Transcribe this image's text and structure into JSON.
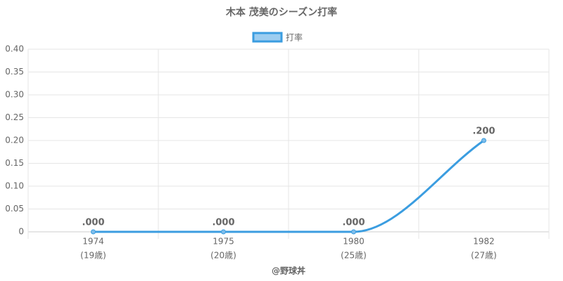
{
  "chart_data": {
    "type": "line",
    "title": "木本 茂美のシーズン打率",
    "categories": [
      "1974",
      "1975",
      "1980",
      "1982"
    ],
    "category_sublabels": [
      "(19歳)",
      "(20歳)",
      "(25歳)",
      "(27歳)"
    ],
    "series": [
      {
        "name": "打率",
        "color": "#3b9de0",
        "values": [
          0,
          0,
          0,
          0.2
        ],
        "value_labels": [
          ".000",
          ".000",
          ".000",
          ".200"
        ]
      }
    ],
    "ylim": [
      0,
      0.4
    ],
    "yticks": [
      0,
      0.05,
      {
        "value": 0.1,
        "label": "0.10"
      },
      0.15,
      {
        "value": 0.2,
        "label": "0.20"
      },
      0.25,
      {
        "value": 0.3,
        "label": "0.30"
      },
      0.35,
      {
        "value": 0.4,
        "label": "0.40"
      }
    ],
    "grid": true,
    "legend": "top",
    "credit": "@野球丼"
  }
}
